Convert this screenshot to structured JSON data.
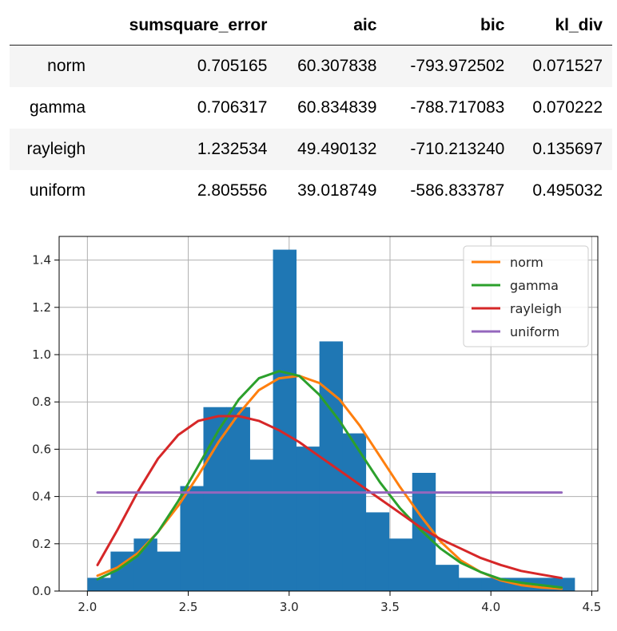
{
  "table": {
    "columns": [
      "",
      "sumsquare_error",
      "aic",
      "bic",
      "kl_div"
    ],
    "rows": [
      {
        "name": "norm",
        "values": [
          "0.705165",
          "60.307838",
          "-793.972502",
          "0.071527"
        ]
      },
      {
        "name": "gamma",
        "values": [
          "0.706317",
          "60.834839",
          "-788.717083",
          "0.070222"
        ]
      },
      {
        "name": "rayleigh",
        "values": [
          "1.232534",
          "49.490132",
          "-710.213240",
          "0.135697"
        ]
      },
      {
        "name": "uniform",
        "values": [
          "2.805556",
          "39.018749",
          "-586.833787",
          "0.495032"
        ]
      }
    ]
  },
  "chart_data": {
    "type": "bar",
    "title": "",
    "xlabel": "",
    "ylabel": "",
    "xlim": [
      1.86,
      4.53
    ],
    "ylim": [
      0,
      1.5
    ],
    "xticks": [
      "2.0",
      "2.5",
      "3.0",
      "3.5",
      "4.0",
      "4.5"
    ],
    "yticks": [
      "0.0",
      "0.2",
      "0.4",
      "0.6",
      "0.8",
      "1.0",
      "1.2",
      "1.4"
    ],
    "grid": true,
    "legend_position": "top-right",
    "histogram": {
      "color": "#1f77b4",
      "bins": [
        {
          "left": 2.0,
          "right": 2.115,
          "value": 0.056
        },
        {
          "left": 2.115,
          "right": 2.23,
          "value": 0.167
        },
        {
          "left": 2.23,
          "right": 2.345,
          "value": 0.222
        },
        {
          "left": 2.345,
          "right": 2.46,
          "value": 0.167
        },
        {
          "left": 2.46,
          "right": 2.575,
          "value": 0.444
        },
        {
          "left": 2.575,
          "right": 2.69,
          "value": 0.778
        },
        {
          "left": 2.69,
          "right": 2.805,
          "value": 0.778
        },
        {
          "left": 2.805,
          "right": 2.92,
          "value": 0.556
        },
        {
          "left": 2.92,
          "right": 3.035,
          "value": 1.444
        },
        {
          "left": 3.035,
          "right": 3.15,
          "value": 0.611
        },
        {
          "left": 3.15,
          "right": 3.265,
          "value": 1.056
        },
        {
          "left": 3.265,
          "right": 3.38,
          "value": 0.667
        },
        {
          "left": 3.38,
          "right": 3.495,
          "value": 0.333
        },
        {
          "left": 3.495,
          "right": 3.61,
          "value": 0.222
        },
        {
          "left": 3.61,
          "right": 3.725,
          "value": 0.5
        },
        {
          "left": 3.725,
          "right": 3.84,
          "value": 0.111
        },
        {
          "left": 3.84,
          "right": 3.955,
          "value": 0.056
        },
        {
          "left": 3.955,
          "right": 4.07,
          "value": 0.056
        },
        {
          "left": 4.07,
          "right": 4.185,
          "value": 0.056
        },
        {
          "left": 4.185,
          "right": 4.3,
          "value": 0.056
        },
        {
          "left": 4.3,
          "right": 4.415,
          "value": 0.056
        }
      ]
    },
    "series": [
      {
        "name": "norm",
        "color": "#ff7f0e",
        "x": [
          2.05,
          2.15,
          2.25,
          2.35,
          2.45,
          2.55,
          2.65,
          2.75,
          2.85,
          2.95,
          3.05,
          3.15,
          3.25,
          3.35,
          3.45,
          3.55,
          3.65,
          3.75,
          3.85,
          3.95,
          4.05,
          4.15,
          4.25,
          4.35
        ],
        "y": [
          0.065,
          0.1,
          0.16,
          0.25,
          0.36,
          0.49,
          0.63,
          0.75,
          0.85,
          0.9,
          0.91,
          0.88,
          0.81,
          0.7,
          0.57,
          0.44,
          0.32,
          0.21,
          0.13,
          0.08,
          0.045,
          0.025,
          0.015,
          0.01
        ]
      },
      {
        "name": "gamma",
        "color": "#2ca02c",
        "x": [
          2.05,
          2.15,
          2.25,
          2.35,
          2.45,
          2.55,
          2.65,
          2.75,
          2.85,
          2.95,
          3.05,
          3.15,
          3.25,
          3.35,
          3.45,
          3.55,
          3.65,
          3.75,
          3.85,
          3.95,
          4.05,
          4.15,
          4.25,
          4.35
        ],
        "y": [
          0.05,
          0.09,
          0.15,
          0.25,
          0.38,
          0.53,
          0.68,
          0.81,
          0.9,
          0.93,
          0.91,
          0.83,
          0.72,
          0.59,
          0.46,
          0.35,
          0.26,
          0.18,
          0.12,
          0.08,
          0.05,
          0.035,
          0.025,
          0.015
        ]
      },
      {
        "name": "rayleigh",
        "color": "#d62728",
        "x": [
          2.05,
          2.15,
          2.25,
          2.35,
          2.45,
          2.55,
          2.65,
          2.75,
          2.85,
          2.95,
          3.05,
          3.15,
          3.25,
          3.35,
          3.45,
          3.55,
          3.65,
          3.75,
          3.85,
          3.95,
          4.05,
          4.15,
          4.25,
          4.35
        ],
        "y": [
          0.11,
          0.26,
          0.42,
          0.56,
          0.66,
          0.72,
          0.74,
          0.74,
          0.72,
          0.68,
          0.63,
          0.57,
          0.51,
          0.45,
          0.39,
          0.33,
          0.27,
          0.22,
          0.18,
          0.14,
          0.11,
          0.085,
          0.07,
          0.055
        ]
      },
      {
        "name": "uniform",
        "color": "#9467bd",
        "x": [
          2.05,
          4.35
        ],
        "y": [
          0.417,
          0.417
        ]
      }
    ]
  }
}
